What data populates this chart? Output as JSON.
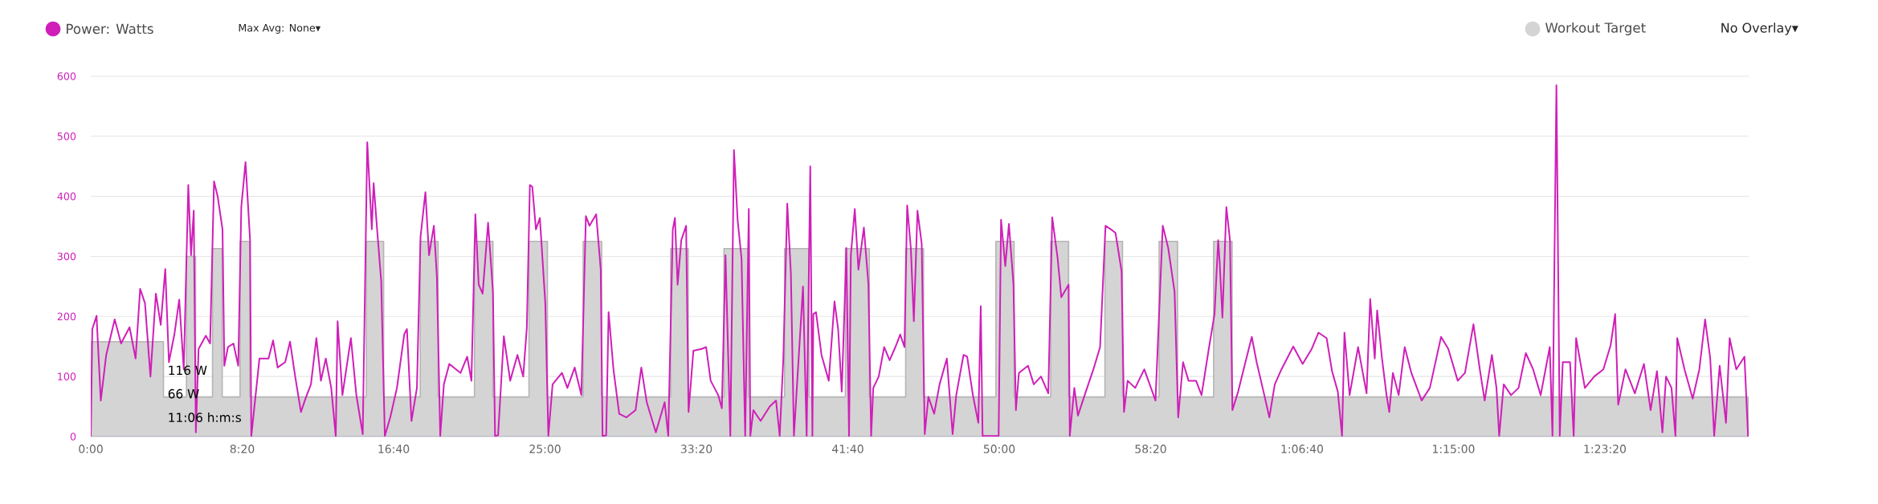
{
  "chart_data": {
    "type": "line",
    "xlim": [
      0,
      5475
    ],
    "ylim": [
      0,
      600
    ],
    "xticks": [
      {
        "value": 0,
        "label": "0:00"
      },
      {
        "value": 500,
        "label": "8:20"
      },
      {
        "value": 1000,
        "label": "16:40"
      },
      {
        "value": 1500,
        "label": "25:00"
      },
      {
        "value": 2000,
        "label": "33:20"
      },
      {
        "value": 2500,
        "label": "41:40"
      },
      {
        "value": 3000,
        "label": "50:00"
      },
      {
        "value": 3500,
        "label": "58:20"
      },
      {
        "value": 4000,
        "label": "1:06:40"
      },
      {
        "value": 4500,
        "label": "1:15:00"
      },
      {
        "value": 5000,
        "label": "1:23:20"
      }
    ],
    "yticks": [
      0,
      100,
      200,
      300,
      400,
      500,
      600
    ],
    "grid": "y",
    "legend": "top",
    "marker": "none",
    "annotations": [
      "116 W",
      "66 W",
      "11:06 h:m:s",
      "Max Avg: None▾",
      "No Overlay▾"
    ],
    "series": [
      {
        "name": "Workout Target",
        "type": "area",
        "color": "#d4d4d4",
        "x": [
          0,
          240,
          240,
          316,
          316,
          346,
          346,
          402,
          402,
          434,
          434,
          493,
          493,
          525,
          525,
          910,
          910,
          967,
          967,
          1088,
          1088,
          1147,
          1147,
          1267,
          1267,
          1328,
          1328,
          1447,
          1447,
          1508,
          1508,
          1626,
          1626,
          1687,
          1687,
          1915,
          1915,
          1973,
          1973,
          2091,
          2091,
          2172,
          2172,
          2291,
          2291,
          2372,
          2372,
          2492,
          2492,
          2571,
          2571,
          2691,
          2691,
          2750,
          2750,
          2989,
          2989,
          3049,
          3049,
          3170,
          3170,
          3229,
          3229,
          3349,
          3349,
          3407,
          3407,
          3528,
          3528,
          3589,
          3589,
          3708,
          3708,
          3769,
          3769,
          5473
        ],
        "values": [
          158,
          158,
          66,
          66,
          300,
          300,
          66,
          66,
          313,
          313,
          66,
          66,
          325,
          325,
          66,
          66,
          325,
          325,
          66,
          66,
          325,
          325,
          66,
          66,
          325,
          325,
          66,
          66,
          325,
          325,
          66,
          66,
          325,
          325,
          66,
          66,
          313,
          313,
          66,
          66,
          313,
          313,
          66,
          66,
          313,
          313,
          66,
          66,
          313,
          313,
          66,
          66,
          313,
          313,
          66,
          66,
          325,
          325,
          66,
          66,
          325,
          325,
          66,
          66,
          325,
          325,
          66,
          66,
          325,
          325,
          66,
          66,
          325,
          325,
          66,
          66
        ]
      },
      {
        "name": "Power: Watts",
        "color": "#cf1fb8",
        "x": [
          0,
          5,
          19,
          33,
          51,
          79,
          100,
          128,
          148,
          163,
          179,
          197,
          215,
          231,
          246,
          258,
          276,
          292,
          307,
          322,
          331,
          340,
          347,
          356,
          380,
          394,
          407,
          419,
          435,
          441,
          453,
          471,
          487,
          497,
          511,
          526,
          530,
          557,
          587,
          602,
          617,
          642,
          658,
          675,
          694,
          711,
          727,
          745,
          760,
          776,
          794,
          809,
          815,
          831,
          859,
          877,
          898,
          913,
          928,
          934,
          946,
          959,
          971,
          989,
          1011,
          1035,
          1044,
          1059,
          1077,
          1089,
          1105,
          1117,
          1133,
          1143,
          1154,
          1166,
          1184,
          1221,
          1243,
          1257,
          1270,
          1281,
          1294,
          1312,
          1328,
          1335,
          1345,
          1364,
          1385,
          1409,
          1428,
          1440,
          1450,
          1458,
          1470,
          1483,
          1501,
          1511,
          1525,
          1556,
          1574,
          1598,
          1620,
          1635,
          1647,
          1669,
          1684,
          1690,
          1702,
          1710,
          1726,
          1745,
          1769,
          1799,
          1818,
          1836,
          1866,
          1895,
          1907,
          1922,
          1929,
          1938,
          1950,
          1966,
          1974,
          1990,
          2017,
          2032,
          2047,
          2072,
          2084,
          2096,
          2112,
          2124,
          2136,
          2149,
          2161,
          2173,
          2178,
          2188,
          2212,
          2242,
          2263,
          2275,
          2287,
          2300,
          2312,
          2322,
          2352,
          2364,
          2376,
          2383,
          2386,
          2395,
          2413,
          2437,
          2456,
          2468,
          2480,
          2490,
          2495,
          2504,
          2510,
          2523,
          2535,
          2553,
          2568,
          2577,
          2584,
          2602,
          2620,
          2638,
          2657,
          2673,
          2687,
          2696,
          2708,
          2718,
          2730,
          2744,
          2754,
          2766,
          2785,
          2803,
          2827,
          2846,
          2858,
          2882,
          2894,
          2913,
          2931,
          2939,
          2945,
          2998,
          3006,
          3020,
          3032,
          3047,
          3055,
          3065,
          3095,
          3114,
          3138,
          3162,
          3175,
          3193,
          3205,
          3229,
          3233,
          3248,
          3260,
          3284,
          3311,
          3333,
          3351,
          3369,
          3384,
          3404,
          3412,
          3424,
          3449,
          3479,
          3516,
          3540,
          3558,
          3579,
          3591,
          3607,
          3625,
          3650,
          3668,
          3692,
          3711,
          3723,
          3728,
          3737,
          3750,
          3762,
          3770,
          3789,
          3813,
          3834,
          3850,
          3874,
          3892,
          3910,
          3932,
          3971,
          4002,
          4032,
          4054,
          4081,
          4099,
          4118,
          4132,
          4140,
          4157,
          4185,
          4213,
          4225,
          4240,
          4248,
          4264,
          4279,
          4288,
          4300,
          4319,
          4339,
          4361,
          4395,
          4422,
          4459,
          4483,
          4514,
          4538,
          4566,
          4587,
          4603,
          4627,
          4642,
          4651,
          4666,
          4690,
          4715,
          4739,
          4763,
          4788,
          4818,
          4827,
          4840,
          4851,
          4861,
          4885,
          4897,
          4905,
          4934,
          4965,
          4995,
          5019,
          5034,
          5044,
          5068,
          5099,
          5129,
          5151,
          5172,
          5190,
          5202,
          5220,
          5233,
          5239,
          5263,
          5290,
          5312,
          5331,
          5348,
          5361,
          5379,
          5400,
          5412,
          5434,
          5461,
          5473
        ],
        "values": [
          0,
          179,
          201,
          60,
          136,
          195,
          155,
          182,
          130,
          246,
          222,
          100,
          238,
          186,
          279,
          124,
          170,
          228,
          112,
          419,
          302,
          376,
          7,
          146,
          168,
          155,
          425,
          400,
          345,
          118,
          149,
          155,
          118,
          382,
          457,
          327,
          0,
          130,
          130,
          160,
          115,
          124,
          158,
          100,
          41,
          66,
          87,
          164,
          93,
          130,
          81,
          0,
          192,
          69,
          164,
          69,
          4,
          490,
          345,
          422,
          342,
          259,
          1,
          32,
          81,
          170,
          179,
          26,
          81,
          333,
          407,
          302,
          351,
          265,
          1,
          87,
          121,
          106,
          133,
          93,
          370,
          253,
          238,
          356,
          241,
          1,
          2,
          167,
          93,
          136,
          100,
          182,
          419,
          416,
          345,
          364,
          222,
          1,
          87,
          106,
          81,
          115,
          69,
          367,
          351,
          370,
          278,
          1,
          2,
          207,
          112,
          38,
          32,
          44,
          115,
          57,
          7,
          57,
          1,
          345,
          364,
          253,
          327,
          351,
          41,
          143,
          146,
          149,
          93,
          69,
          47,
          302,
          1,
          477,
          361,
          296,
          1,
          379,
          1,
          44,
          26,
          50,
          60,
          1,
          130,
          388,
          271,
          1,
          250,
          1,
          450,
          1,
          204,
          207,
          136,
          93,
          225,
          179,
          75,
          229,
          314,
          1,
          302,
          379,
          278,
          348,
          253,
          1,
          81,
          100,
          149,
          127,
          149,
          170,
          149,
          385,
          314,
          192,
          376,
          321,
          4,
          66,
          38,
          87,
          130,
          4,
          69,
          136,
          133,
          69,
          23,
          217,
          1,
          1,
          361,
          284,
          354,
          253,
          44,
          106,
          118,
          87,
          100,
          72,
          365,
          296,
          232,
          253,
          1,
          81,
          35,
          72,
          112,
          149,
          351,
          345,
          339,
          275,
          41,
          93,
          81,
          112,
          60,
          351,
          314,
          241,
          32,
          124,
          93,
          93,
          69,
          146,
          204,
          327,
          290,
          198,
          382,
          327,
          44,
          75,
          124,
          166,
          124,
          72,
          32,
          87,
          112,
          150,
          121,
          146,
          173,
          164,
          109,
          75,
          1,
          173,
          69,
          149,
          72,
          229,
          130,
          210,
          130,
          69,
          41,
          106,
          69,
          149,
          106,
          60,
          81,
          166,
          146,
          93,
          106,
          187,
          112,
          60,
          136,
          81,
          1,
          87,
          69,
          81,
          139,
          112,
          69,
          149,
          1,
          585,
          1,
          124,
          124,
          1,
          164,
          81,
          100,
          112,
          152,
          204,
          53,
          112,
          72,
          121,
          44,
          109,
          7,
          100,
          81,
          1,
          164,
          112,
          63,
          112,
          195,
          130,
          1,
          118,
          23,
          164,
          112,
          133,
          0
        ]
      }
    ]
  }
}
